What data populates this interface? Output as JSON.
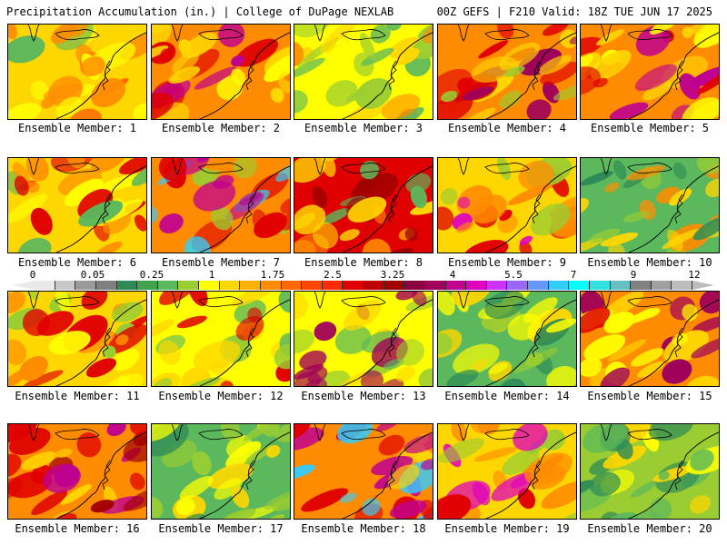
{
  "header": {
    "left_title": "Precipitation Accumulation (in.) | College of DuPage NEXLAB",
    "right_title": "00Z GEFS | F210 Valid: 18Z TUE JUN 17 2025"
  },
  "colorbar": {
    "labels": [
      "0",
      "0.05",
      "0.25",
      "1",
      "1.75",
      "2.5",
      "3.25",
      "4",
      "5.5",
      "7",
      "9",
      "12"
    ],
    "colors": [
      "#e9e9e9",
      "#c8c8c8",
      "#9a9a9a",
      "#7f7f7f",
      "#2e8b57",
      "#3fa34d",
      "#5cb85c",
      "#9acd32",
      "#ffff00",
      "#ffd700",
      "#ffb000",
      "#ff8c00",
      "#ff6a00",
      "#ff4500",
      "#ff2a00",
      "#e00000",
      "#c00000",
      "#a00000",
      "#8b0040",
      "#a0005a",
      "#c00090",
      "#e000c0",
      "#cc33ff",
      "#9966ff",
      "#6699ff",
      "#33ccff",
      "#00ffff",
      "#33e0e0",
      "#66c0c0",
      "#808080",
      "#a0a0a0",
      "#bdbdbd"
    ]
  },
  "panels": [
    {
      "label": "Ensemble Member: 1",
      "palette": [
        "#ffd700",
        "#ff8c00",
        "#ffff00",
        "#5cb85c",
        "#ff4500"
      ]
    },
    {
      "label": "Ensemble Member: 2",
      "palette": [
        "#ff8c00",
        "#e00000",
        "#ffd700",
        "#c00090",
        "#ffff00"
      ]
    },
    {
      "label": "Ensemble Member: 3",
      "palette": [
        "#ffff00",
        "#9acd32",
        "#ffd700",
        "#5cb85c",
        "#ff8c00"
      ]
    },
    {
      "label": "Ensemble Member: 4",
      "palette": [
        "#ff8c00",
        "#e00000",
        "#ffd700",
        "#9acd32",
        "#a0005a"
      ]
    },
    {
      "label": "Ensemble Member: 5",
      "palette": [
        "#ff8c00",
        "#ffd700",
        "#e00000",
        "#c00090",
        "#ffff00"
      ]
    },
    {
      "label": "Ensemble Member: 6",
      "palette": [
        "#ffd700",
        "#ff8c00",
        "#ffff00",
        "#5cb85c",
        "#e00000"
      ]
    },
    {
      "label": "Ensemble Member: 7",
      "palette": [
        "#ff8c00",
        "#e00000",
        "#c00090",
        "#9acd32",
        "#33ccff"
      ]
    },
    {
      "label": "Ensemble Member: 8",
      "palette": [
        "#e00000",
        "#ff8c00",
        "#a00000",
        "#ffd700",
        "#5cb85c"
      ]
    },
    {
      "label": "Ensemble Member: 9",
      "palette": [
        "#ffd700",
        "#ff8c00",
        "#9acd32",
        "#e000c0",
        "#e00000"
      ]
    },
    {
      "label": "Ensemble Member: 10",
      "palette": [
        "#5cb85c",
        "#9acd32",
        "#ffd700",
        "#ff8c00",
        "#2e8b57"
      ]
    },
    {
      "label": "Ensemble Member: 11",
      "palette": [
        "#ffd700",
        "#ff8c00",
        "#ffff00",
        "#9acd32",
        "#e00000"
      ]
    },
    {
      "label": "Ensemble Member: 12",
      "palette": [
        "#ffff00",
        "#9acd32",
        "#ffd700",
        "#e00000",
        "#5cb85c"
      ]
    },
    {
      "label": "Ensemble Member: 13",
      "palette": [
        "#ffff00",
        "#9acd32",
        "#ffd700",
        "#5cb85c",
        "#a0005a"
      ]
    },
    {
      "label": "Ensemble Member: 14",
      "palette": [
        "#5cb85c",
        "#9acd32",
        "#ffff00",
        "#2e8b57",
        "#ffd700"
      ]
    },
    {
      "label": "Ensemble Member: 15",
      "palette": [
        "#ff8c00",
        "#ffd700",
        "#e00000",
        "#ffff00",
        "#a0005a"
      ]
    },
    {
      "label": "Ensemble Member: 16",
      "palette": [
        "#ff8c00",
        "#e00000",
        "#c00090",
        "#ffd700",
        "#a00000"
      ]
    },
    {
      "label": "Ensemble Member: 17",
      "palette": [
        "#5cb85c",
        "#9acd32",
        "#ffff00",
        "#ffd700",
        "#2e8b57"
      ]
    },
    {
      "label": "Ensemble Member: 18",
      "palette": [
        "#ff8c00",
        "#e00000",
        "#ffd700",
        "#c00090",
        "#33ccff"
      ]
    },
    {
      "label": "Ensemble Member: 19",
      "palette": [
        "#ffd700",
        "#ff8c00",
        "#e00000",
        "#e000c0",
        "#9acd32"
      ]
    },
    {
      "label": "Ensemble Member: 20",
      "palette": [
        "#9acd32",
        "#5cb85c",
        "#ffff00",
        "#ffd700",
        "#2e8b57"
      ]
    }
  ]
}
